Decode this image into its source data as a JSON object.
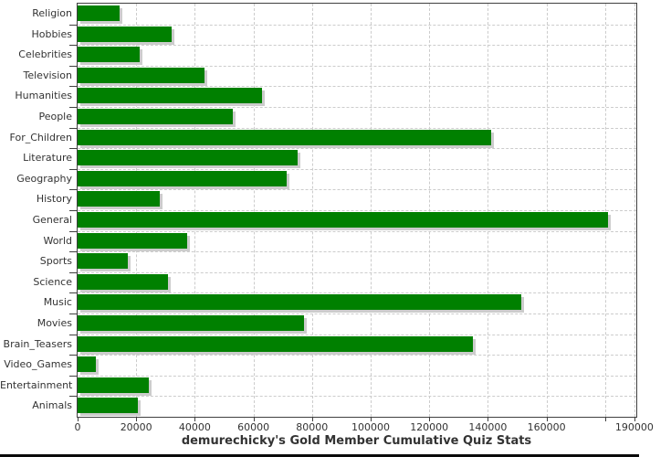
{
  "chart_data": {
    "type": "bar",
    "orientation": "horizontal",
    "title": "demurechicky's Gold Member Cumulative Quiz Stats",
    "categories": [
      "Religion",
      "Hobbies",
      "Celebrities",
      "Television",
      "Humanities",
      "People",
      "For_Children",
      "Literature",
      "Geography",
      "History",
      "General",
      "World",
      "Sports",
      "Science",
      "Music",
      "Movies",
      "Brain_Teasers",
      "Video_Games",
      "Entertainment",
      "Animals"
    ],
    "values": [
      14300,
      32200,
      21100,
      43300,
      63000,
      52800,
      141000,
      75100,
      71400,
      27900,
      181000,
      37400,
      17100,
      30800,
      151400,
      77300,
      134900,
      6200,
      24300,
      20500
    ],
    "xlabel": "",
    "ylabel": "",
    "xlim": [
      0,
      190650
    ],
    "x_ticks": [
      {
        "value": 0,
        "label": "0"
      },
      {
        "value": 20000,
        "label": "20000"
      },
      {
        "value": 40000,
        "label": "40000"
      },
      {
        "value": 60000,
        "label": "60000"
      },
      {
        "value": 80000,
        "label": "80000"
      },
      {
        "value": 100000,
        "label": "100000"
      },
      {
        "value": 120000,
        "label": "120000"
      },
      {
        "value": 140000,
        "label": "140000"
      },
      {
        "value": 160000,
        "label": "160000"
      },
      {
        "value": 180000,
        "label": ""
      },
      {
        "value": 190000,
        "label": "190000"
      }
    ],
    "grid": true,
    "legend_position": "none",
    "title_position": "bottom"
  },
  "colors": {
    "bar": "#008000",
    "bar_shadow": "#cccccc",
    "gridline": "#cccccc",
    "axis": "#404040",
    "text": "#333333",
    "background": "#ffffff",
    "bottom_strip": "#0a0a0a"
  }
}
